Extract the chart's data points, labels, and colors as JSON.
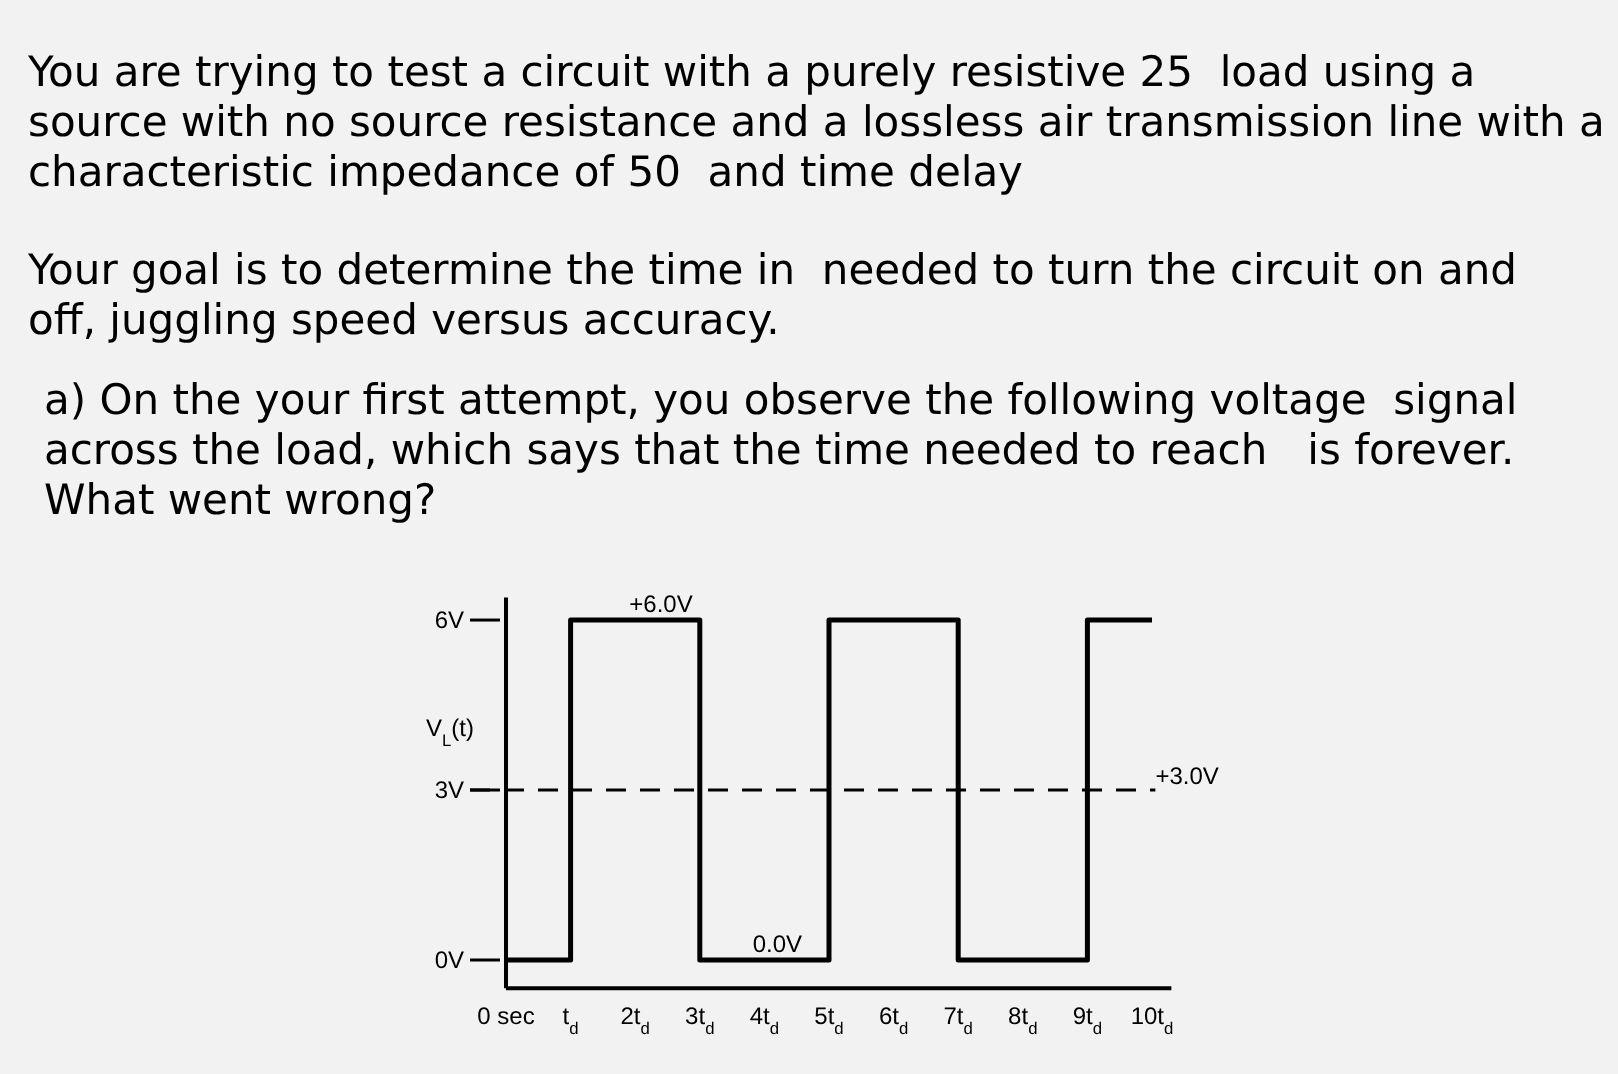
{
  "chart_data": {
    "type": "step",
    "title": "You are trying to test a circuit with a purely resistive 25  load using a source with no source resistance and a lossless air transmission line with a characteristic impedance of 50  and time delay",
    "subtitle": "Your goal is to determine the time in  needed to turn the circuit on and off, juggling speed versus accuracy.",
    "annotations": [
      "a) On the your first attempt, you observe the following voltage  signal across the load, which says that the time needed to reach   is forever. What went wrong?",
      {
        "text": "+6.0V",
        "x": 2.4,
        "y": 6
      },
      {
        "text": "0.0V",
        "x": 4.2,
        "y": 0
      }
    ],
    "ylabel": "V$_{L}$(t)",
    "x": [
      0,
      1,
      3,
      5,
      7,
      9,
      10
    ],
    "series": [
      {
        "color": "#000000",
        "values": [
          0,
          6,
          0,
          6,
          0,
          6,
          6
        ]
      }
    ],
    "xlim": [
      0,
      10.3
    ],
    "xticks": [
      {
        "value": 0,
        "label": "0 sec"
      },
      {
        "value": 1,
        "label": "t$_{d}$"
      },
      {
        "value": 2,
        "label": "2t$_{d}$"
      },
      {
        "value": 3,
        "label": "3t$_{d}$"
      },
      {
        "value": 4,
        "label": "4t$_{d}$"
      },
      {
        "value": 5,
        "label": "5t$_{d}$"
      },
      {
        "value": 6,
        "label": "6t$_{d}$"
      },
      {
        "value": 7,
        "label": "7t$_{d}$"
      },
      {
        "value": 8,
        "label": "8t$_{d}$"
      },
      {
        "value": 9,
        "label": "9t$_{d}$"
      },
      {
        "value": 10,
        "label": "10t$_{d}$"
      }
    ],
    "ylim": [
      -0.5,
      6.4
    ],
    "yticks": [
      {
        "value": 0,
        "label": "0V"
      },
      {
        "value": 3,
        "label": "3V"
      },
      {
        "value": 6,
        "label": "6V"
      }
    ],
    "ref_lines": [
      {
        "axis": "y",
        "value": 3,
        "label": "+3.0V",
        "line_style": "dashed"
      }
    ]
  }
}
